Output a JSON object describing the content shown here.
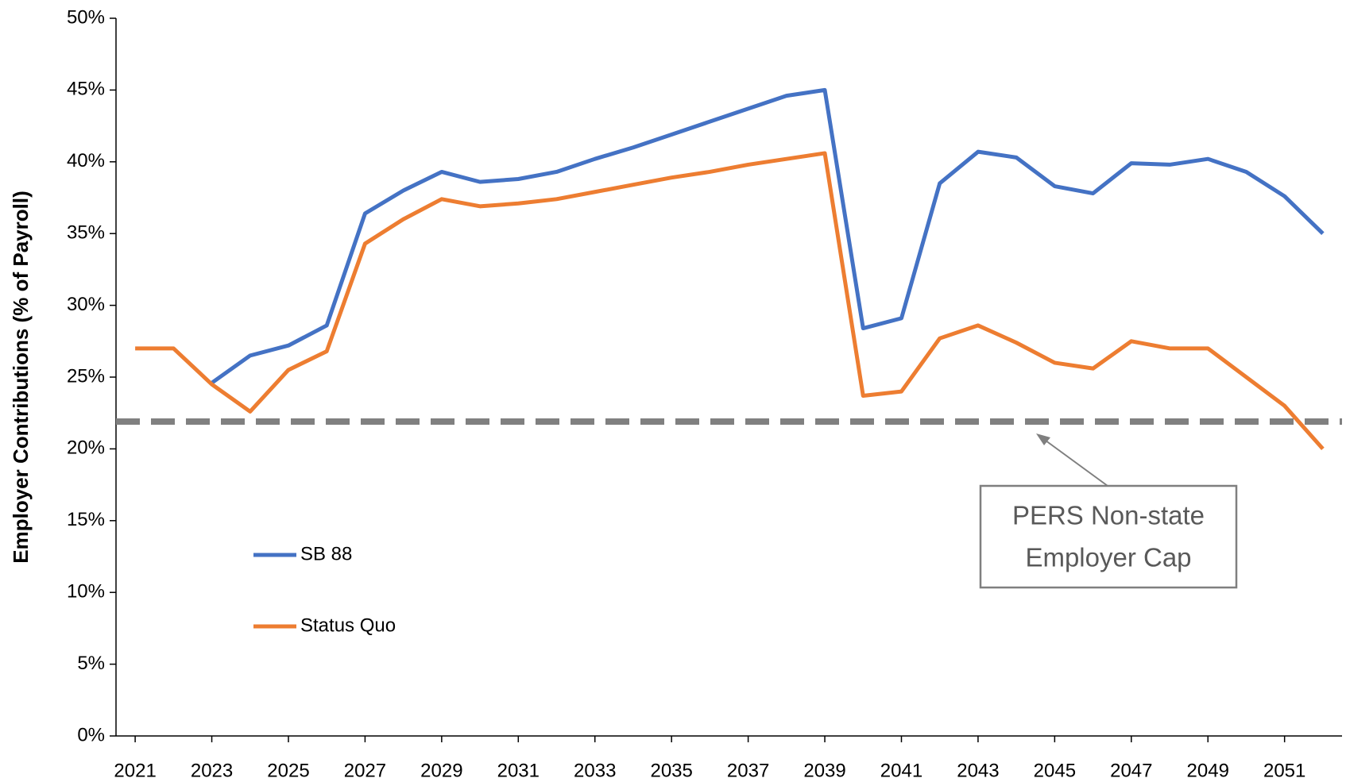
{
  "chart_data": {
    "type": "line",
    "y_label": "Employer Contributions (% of Payroll)",
    "x": [
      2021,
      2022,
      2023,
      2024,
      2025,
      2026,
      2027,
      2028,
      2029,
      2030,
      2031,
      2032,
      2033,
      2034,
      2035,
      2036,
      2037,
      2038,
      2039,
      2040,
      2041,
      2042,
      2043,
      2044,
      2045,
      2046,
      2047,
      2048,
      2049,
      2050,
      2051,
      2052
    ],
    "series": [
      {
        "name": "SB 88",
        "color": "#4472c4",
        "values": [
          null,
          null,
          24.6,
          26.5,
          27.2,
          28.6,
          36.4,
          38.0,
          39.3,
          38.6,
          38.8,
          39.3,
          40.2,
          41.0,
          41.9,
          42.8,
          43.7,
          44.6,
          45.0,
          28.4,
          29.1,
          38.5,
          40.7,
          40.3,
          38.3,
          37.8,
          39.9,
          39.8,
          40.2,
          39.3,
          37.6,
          35.0
        ]
      },
      {
        "name": "Status Quo",
        "color": "#ed7d31",
        "values": [
          27.0,
          27.0,
          24.5,
          22.6,
          25.5,
          26.8,
          34.3,
          36.0,
          37.4,
          36.9,
          37.1,
          37.4,
          37.9,
          38.4,
          38.9,
          39.3,
          39.8,
          40.2,
          40.6,
          23.7,
          24.0,
          27.7,
          28.6,
          27.4,
          26.0,
          25.6,
          27.5,
          27.0,
          27.0,
          25.0,
          23.0,
          20.0
        ]
      }
    ],
    "reference_line": {
      "value": 21.9,
      "color": "#808080"
    },
    "annotation": {
      "lines": [
        "PERS Non-state",
        "Employer Cap"
      ]
    },
    "xlim": [
      2020.5,
      2052.5
    ],
    "xticks": [
      2021,
      2023,
      2025,
      2027,
      2029,
      2031,
      2033,
      2035,
      2037,
      2039,
      2041,
      2043,
      2045,
      2047,
      2049,
      2051
    ],
    "ylim": [
      0,
      50
    ],
    "yticks": [
      {
        "value": 0,
        "label": "0%"
      },
      {
        "value": 5,
        "label": "5%"
      },
      {
        "value": 10,
        "label": "10%"
      },
      {
        "value": 15,
        "label": "15%"
      },
      {
        "value": 20,
        "label": "20%"
      },
      {
        "value": 25,
        "label": "25%"
      },
      {
        "value": 30,
        "label": "30%"
      },
      {
        "value": 35,
        "label": "35%"
      },
      {
        "value": 40,
        "label": "40%"
      },
      {
        "value": 45,
        "label": "45%"
      },
      {
        "value": 50,
        "label": "50%"
      }
    ],
    "grid": false,
    "legend": "left"
  }
}
